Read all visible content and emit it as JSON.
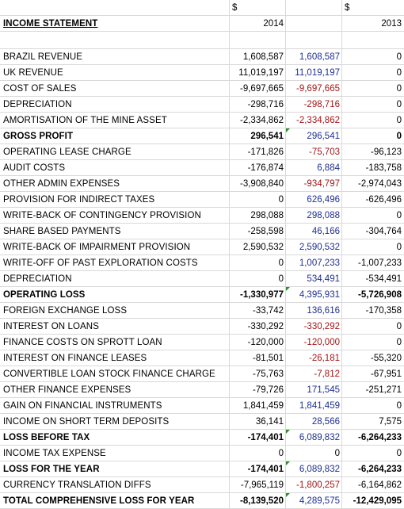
{
  "header": {
    "currency_2014": "$",
    "currency_2013": "$",
    "title": "INCOME STATEMENT",
    "year_2014": "2014",
    "year_2013": "2013"
  },
  "rows": [
    {
      "label": "BRAZIL REVENUE",
      "a": "1,608,587",
      "b": "1,608,587",
      "c": "0",
      "bold": false,
      "b_color": "blue",
      "marker": false
    },
    {
      "label": "UK REVENUE",
      "a": "11,019,197",
      "b": "11,019,197",
      "c": "0",
      "bold": false,
      "b_color": "blue",
      "marker": false
    },
    {
      "label": "COST OF SALES",
      "a": "-9,697,665",
      "b": "-9,697,665",
      "c": "0",
      "bold": false,
      "b_color": "red",
      "marker": false
    },
    {
      "label": "DEPRECIATION",
      "a": "-298,716",
      "b": "-298,716",
      "c": "0",
      "bold": false,
      "b_color": "red",
      "marker": false
    },
    {
      "label": "AMORTISATION OF THE MINE ASSET",
      "a": "-2,334,862",
      "b": "-2,334,862",
      "c": "0",
      "bold": false,
      "b_color": "red",
      "marker": false
    },
    {
      "label": "GROSS PROFIT",
      "a": "296,541",
      "b": "296,541",
      "c": "0",
      "bold": true,
      "b_color": "blue",
      "marker": true
    },
    {
      "label": "OPERATING LEASE CHARGE",
      "a": "-171,826",
      "b": "-75,703",
      "c": "-96,123",
      "bold": false,
      "b_color": "red",
      "marker": false
    },
    {
      "label": "AUDIT COSTS",
      "a": "-176,874",
      "b": "6,884",
      "c": "-183,758",
      "bold": false,
      "b_color": "blue",
      "marker": false
    },
    {
      "label": "OTHER ADMIN EXPENSES",
      "a": "-3,908,840",
      "b": "-934,797",
      "c": "-2,974,043",
      "bold": false,
      "b_color": "red",
      "marker": false
    },
    {
      "label": "PROVISION FOR INDIRECT TAXES",
      "a": "0",
      "b": "626,496",
      "c": "-626,496",
      "bold": false,
      "b_color": "blue",
      "marker": false
    },
    {
      "label": "WRITE-BACK OF CONTINGENCY PROVISION",
      "a": "298,088",
      "b": "298,088",
      "c": "0",
      "bold": false,
      "b_color": "blue",
      "marker": false
    },
    {
      "label": "SHARE BASED PAYMENTS",
      "a": "-258,598",
      "b": "46,166",
      "c": "-304,764",
      "bold": false,
      "b_color": "blue",
      "marker": false
    },
    {
      "label": "WRITE-BACK OF IMPAIRMENT PROVISION",
      "a": "2,590,532",
      "b": "2,590,532",
      "c": "0",
      "bold": false,
      "b_color": "blue",
      "marker": false
    },
    {
      "label": "WRITE-OFF OF PAST EXPLORATION COSTS",
      "a": "0",
      "b": "1,007,233",
      "c": "-1,007,233",
      "bold": false,
      "b_color": "blue",
      "marker": false
    },
    {
      "label": "DEPRECIATION",
      "a": "0",
      "b": "534,491",
      "c": "-534,491",
      "bold": false,
      "b_color": "blue",
      "marker": false
    },
    {
      "label": "OPERATING LOSS",
      "a": "-1,330,977",
      "b": "4,395,931",
      "c": "-5,726,908",
      "bold": true,
      "b_color": "blue",
      "marker": true
    },
    {
      "label": "FOREIGN EXCHANGE LOSS",
      "a": "-33,742",
      "b": "136,616",
      "c": "-170,358",
      "bold": false,
      "b_color": "blue",
      "marker": false
    },
    {
      "label": "INTEREST ON LOANS",
      "a": "-330,292",
      "b": "-330,292",
      "c": "0",
      "bold": false,
      "b_color": "red",
      "marker": false
    },
    {
      "label": "FINANCE COSTS ON SPROTT LOAN",
      "a": "-120,000",
      "b": "-120,000",
      "c": "0",
      "bold": false,
      "b_color": "red",
      "marker": false
    },
    {
      "label": "INTEREST ON FINANCE LEASES",
      "a": "-81,501",
      "b": "-26,181",
      "c": "-55,320",
      "bold": false,
      "b_color": "red",
      "marker": false
    },
    {
      "label": "CONVERTIBLE LOAN STOCK FINANCE CHARGE",
      "a": "-75,763",
      "b": "-7,812",
      "c": "-67,951",
      "bold": false,
      "b_color": "red",
      "marker": false
    },
    {
      "label": "OTHER FINANCE EXPENSES",
      "a": "-79,726",
      "b": "171,545",
      "c": "-251,271",
      "bold": false,
      "b_color": "blue",
      "marker": false
    },
    {
      "label": "GAIN ON FINANCIAL INSTRUMENTS",
      "a": "1,841,459",
      "b": "1,841,459",
      "c": "0",
      "bold": false,
      "b_color": "blue",
      "marker": false
    },
    {
      "label": "INCOME ON SHORT TERM DEPOSITS",
      "a": "36,141",
      "b": "28,566",
      "c": "7,575",
      "bold": false,
      "b_color": "blue",
      "marker": false
    },
    {
      "label": "LOSS BEFORE TAX",
      "a": "-174,401",
      "b": "6,089,832",
      "c": "-6,264,233",
      "bold": true,
      "b_color": "blue",
      "marker": true
    },
    {
      "label": "INCOME TAX EXPENSE",
      "a": "0",
      "b": "0",
      "c": "0",
      "bold": false,
      "b_color": "black",
      "marker": false
    },
    {
      "label": "LOSS FOR THE YEAR",
      "a": "-174,401",
      "b": "6,089,832",
      "c": "-6,264,233",
      "bold": true,
      "b_color": "blue",
      "marker": true
    },
    {
      "label": "CURRENCY TRANSLATION DIFFS",
      "a": "-7,965,119",
      "b": "-1,800,257",
      "c": "-6,164,862",
      "bold": false,
      "b_color": "red",
      "marker": false
    },
    {
      "label": "TOTAL COMPREHENSIVE  LOSS FOR YEAR",
      "a": "-8,139,520",
      "b": "4,289,575",
      "c": "-12,429,095",
      "bold": true,
      "b_color": "blue",
      "marker": true
    }
  ]
}
